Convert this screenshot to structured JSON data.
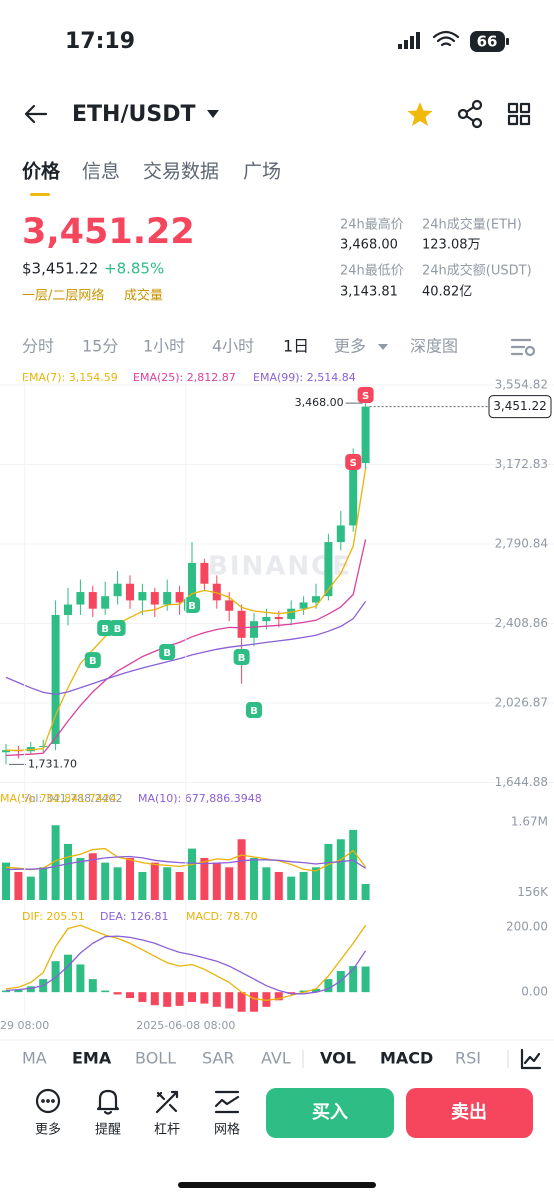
{
  "status_bar": {
    "time": "17:19",
    "battery": "66"
  },
  "header": {
    "pair": "ETH/USDT"
  },
  "tabs": [
    "价格",
    "信息",
    "交易数据",
    "广场"
  ],
  "price": {
    "last": "3,451.22",
    "usd": "$3,451.22",
    "change": "+8.85%",
    "tags": [
      "一层/二层网络",
      "成交量"
    ]
  },
  "stats": [
    {
      "label": "24h最高价",
      "value": "3,468.00"
    },
    {
      "label": "24h成交量(ETH)",
      "value": "123.08万"
    },
    {
      "label": "24h最低价",
      "value": "3,143.81"
    },
    {
      "label": "24h成交额(USDT)",
      "value": "40.82亿"
    }
  ],
  "intervals": [
    "分时",
    "15分",
    "1小时",
    "4小时",
    "1日",
    "更多",
    "深度图"
  ],
  "chart_data": [
    {
      "type": "candlestick",
      "watermark": "BINANCE",
      "open": [
        1790,
        1800,
        1795,
        1815,
        1830,
        2450,
        2500,
        2560,
        2480,
        2540,
        2600,
        2520,
        2560,
        2500,
        2560,
        2510,
        2700,
        2600,
        2520,
        2470,
        2340,
        2420,
        2440,
        2430,
        2480,
        2510,
        2540,
        2800,
        2880,
        3180
      ],
      "high": [
        1830,
        1820,
        1840,
        1850,
        2520,
        2580,
        2620,
        2590,
        2610,
        2660,
        2640,
        2600,
        2580,
        2620,
        2590,
        2800,
        2720,
        2640,
        2560,
        2500,
        2460,
        2480,
        2470,
        2520,
        2540,
        2600,
        2840,
        2950,
        3250,
        3468
      ],
      "low": [
        1731.7,
        1760,
        1780,
        1790,
        1800,
        2400,
        2450,
        2440,
        2450,
        2500,
        2480,
        2450,
        2440,
        2470,
        2450,
        2480,
        2570,
        2480,
        2420,
        2120,
        2300,
        2380,
        2390,
        2400,
        2450,
        2480,
        2520,
        2760,
        2850,
        3150
      ],
      "close": [
        1800,
        1795,
        1815,
        1820,
        2450,
        2500,
        2560,
        2480,
        2540,
        2600,
        2520,
        2560,
        2500,
        2560,
        2510,
        2700,
        2600,
        2520,
        2470,
        2340,
        2420,
        2440,
        2430,
        2480,
        2510,
        2540,
        2800,
        2880,
        3180,
        3451.22
      ],
      "series": [
        {
          "name": "EMA(7): 3,154.59",
          "color": "#e9b308",
          "values": [
            1800,
            1799,
            1803,
            1807,
            1968,
            2101,
            2216,
            2282,
            2346,
            2409,
            2437,
            2467,
            2475,
            2498,
            2502,
            2552,
            2568,
            2556,
            2535,
            2486,
            2469,
            2462,
            2456,
            2463,
            2476,
            2492,
            2572,
            2649,
            2780,
            3154.59
          ]
        },
        {
          "name": "EMA(25): 2,812.87",
          "color": "#d9419e",
          "values": [
            1775,
            1778,
            1781,
            1785,
            1860,
            1940,
            2015,
            2080,
            2135,
            2180,
            2215,
            2250,
            2275,
            2300,
            2318,
            2345,
            2365,
            2380,
            2390,
            2388,
            2392,
            2396,
            2400,
            2406,
            2414,
            2424,
            2454,
            2488,
            2548,
            2812.87
          ]
        },
        {
          "name": "EMA(99): 2,514.84",
          "color": "#8b5fd6",
          "values": [
            2150,
            2125,
            2100,
            2078,
            2068,
            2080,
            2100,
            2120,
            2140,
            2160,
            2178,
            2195,
            2210,
            2225,
            2240,
            2258,
            2272,
            2285,
            2295,
            2302,
            2310,
            2318,
            2325,
            2333,
            2342,
            2352,
            2372,
            2395,
            2432,
            2514.84
          ]
        }
      ],
      "annotations": [
        {
          "index": 29,
          "value": 3468,
          "label": "3,468.00"
        },
        {
          "index": 0,
          "value": 1731.7,
          "label": "1,731.70"
        }
      ],
      "last_price": {
        "value": 3451.22,
        "label": "3,451.22"
      },
      "markers": [
        {
          "label": "B",
          "index": 7,
          "value": 2233
        },
        {
          "label": "B",
          "index": 8,
          "value": 2387
        },
        {
          "label": "B",
          "index": 9,
          "value": 2387
        },
        {
          "label": "B",
          "index": 13,
          "value": 2272
        },
        {
          "label": "B",
          "index": 15,
          "value": 2498
        },
        {
          "label": "B",
          "index": 19,
          "value": 2248
        },
        {
          "label": "B",
          "index": 20,
          "value": 1993
        },
        {
          "label": "S",
          "index": 29,
          "value": 3507
        },
        {
          "label": "S",
          "index": 28,
          "value": 3185
        }
      ],
      "up_color": "#2ebd85",
      "down_color": "#f6465d",
      "ylim": [
        1608.8,
        3602.9
      ],
      "yticks": [
        {
          "value": 3554.82,
          "label": "3,554.82"
        },
        {
          "value": 3172.83,
          "label": "3,172.83"
        },
        {
          "value": 2790.84,
          "label": "2,790.84"
        },
        {
          "value": 2408.86,
          "label": "2,408.86"
        },
        {
          "value": 2026.87,
          "label": "2,026.87"
        },
        {
          "value": 1644.88,
          "label": "1,644.88"
        }
      ],
      "grid": true
    },
    {
      "type": "bar",
      "label": "Vol: 341,788.2402",
      "values": [
        800000,
        600000,
        500000,
        700000,
        1600000,
        1200000,
        900000,
        1000000,
        800000,
        700000,
        900000,
        600000,
        800000,
        700000,
        600000,
        1100000,
        900000,
        800000,
        700000,
        1300000,
        900000,
        700000,
        600000,
        500000,
        600000,
        700000,
        1200000,
        1300000,
        1500000,
        341788.2402
      ],
      "series": [
        {
          "name": "MA(5): 702,841.7424",
          "color": "#e9b308",
          "values": [
            700000,
            680000,
            650000,
            680000,
            840000,
            920000,
            980000,
            1080000,
            1100000,
            920000,
            860000,
            800000,
            760000,
            740000,
            720000,
            760000,
            820000,
            880000,
            860000,
            960000,
            920000,
            880000,
            840000,
            760000,
            660000,
            620000,
            760000,
            860000,
            1060000,
            702841.7424
          ]
        },
        {
          "name": "MA(10): 677,886.3948",
          "color": "#8b5fd6",
          "values": [
            650000,
            660000,
            660000,
            670000,
            720000,
            780000,
            820000,
            860000,
            900000,
            920000,
            930000,
            900000,
            850000,
            820000,
            800000,
            790000,
            780000,
            790000,
            800000,
            840000,
            860000,
            860000,
            850000,
            820000,
            800000,
            770000,
            800000,
            820000,
            850000,
            677886.3948
          ]
        }
      ],
      "ylim": [
        -64000,
        1819000
      ],
      "yticks": [
        {
          "value": 1670000,
          "label": "1.67M"
        },
        {
          "value": 156000,
          "label": "156K"
        }
      ]
    },
    {
      "type": "macd",
      "series": [
        {
          "name": "DIF: 205.51",
          "color": "#e9b308",
          "values": [
            10,
            15,
            30,
            60,
            140,
            195,
            205,
            190,
            175,
            165,
            150,
            130,
            110,
            90,
            80,
            85,
            70,
            50,
            30,
            0,
            -20,
            -25,
            -20,
            -10,
            0,
            10,
            50,
            100,
            150,
            205.51
          ]
        },
        {
          "name": "DEA: 126.81",
          "color": "#8b5fd6",
          "values": [
            5,
            8,
            12,
            20,
            45,
            80,
            120,
            150,
            170,
            172,
            168,
            160,
            150,
            135,
            122,
            115,
            105,
            95,
            80,
            60,
            40,
            20,
            5,
            -5,
            -5,
            0,
            10,
            35,
            70,
            126.81
          ]
        }
      ],
      "histogram": {
        "name": "MACD: 78.70",
        "values": [
          5,
          7,
          18,
          40,
          95,
          115,
          85,
          40,
          5,
          -7,
          -18,
          -30,
          -40,
          -45,
          -42,
          -30,
          -35,
          -45,
          -50,
          -60,
          -60,
          -45,
          -25,
          -5,
          5,
          10,
          40,
          65,
          80,
          78.7
        ]
      },
      "ylim": [
        -70,
        252
      ],
      "yticks": [
        {
          "value": 200,
          "label": "200.00"
        },
        {
          "value": 0,
          "label": "0.00"
        }
      ],
      "xticks": [
        {
          "value": 1.5,
          "label": "29 08:00"
        },
        {
          "value": 14.5,
          "label": "2025-06-08 08:00"
        }
      ]
    }
  ],
  "indicators": {
    "main": [
      "MA",
      "EMA",
      "BOLL",
      "SAR",
      "AVL"
    ],
    "sub": [
      "VOL",
      "MACD",
      "RSI"
    ]
  },
  "actions": [
    "更多",
    "提醒",
    "杠杆",
    "网格"
  ],
  "buttons": {
    "buy": "买入",
    "sell": "卖出"
  }
}
